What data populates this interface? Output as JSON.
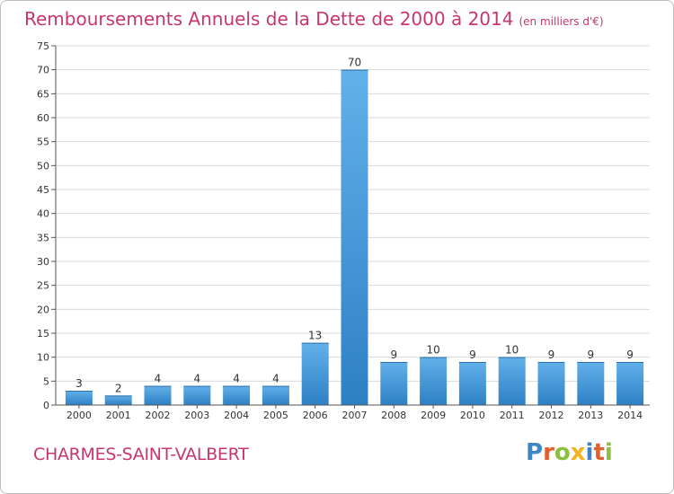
{
  "title": "Remboursements Annuels de la Dette de 2000 à 2014",
  "unit": "(en milliers d'€)",
  "commune": "CHARMES-SAINT-VALBERT",
  "logo_text": "Proxiti",
  "colors": {
    "title": "#c7366f",
    "bar_top": "#63b1ea",
    "bar_bottom": "#2d80c4",
    "grid": "#d9d9d9",
    "axis": "#555555"
  },
  "chart_data": {
    "type": "bar",
    "categories": [
      "2000",
      "2001",
      "2002",
      "2003",
      "2004",
      "2005",
      "2006",
      "2007",
      "2008",
      "2009",
      "2010",
      "2011",
      "2012",
      "2013",
      "2014"
    ],
    "values": [
      3,
      2,
      4,
      4,
      4,
      4,
      13,
      70,
      9,
      10,
      9,
      10,
      9,
      9,
      9
    ],
    "ylim": [
      0,
      75
    ],
    "yticks": [
      0,
      5,
      10,
      15,
      20,
      25,
      30,
      35,
      40,
      45,
      50,
      55,
      60,
      65,
      70,
      75
    ],
    "grid": true,
    "data_labels": true
  }
}
